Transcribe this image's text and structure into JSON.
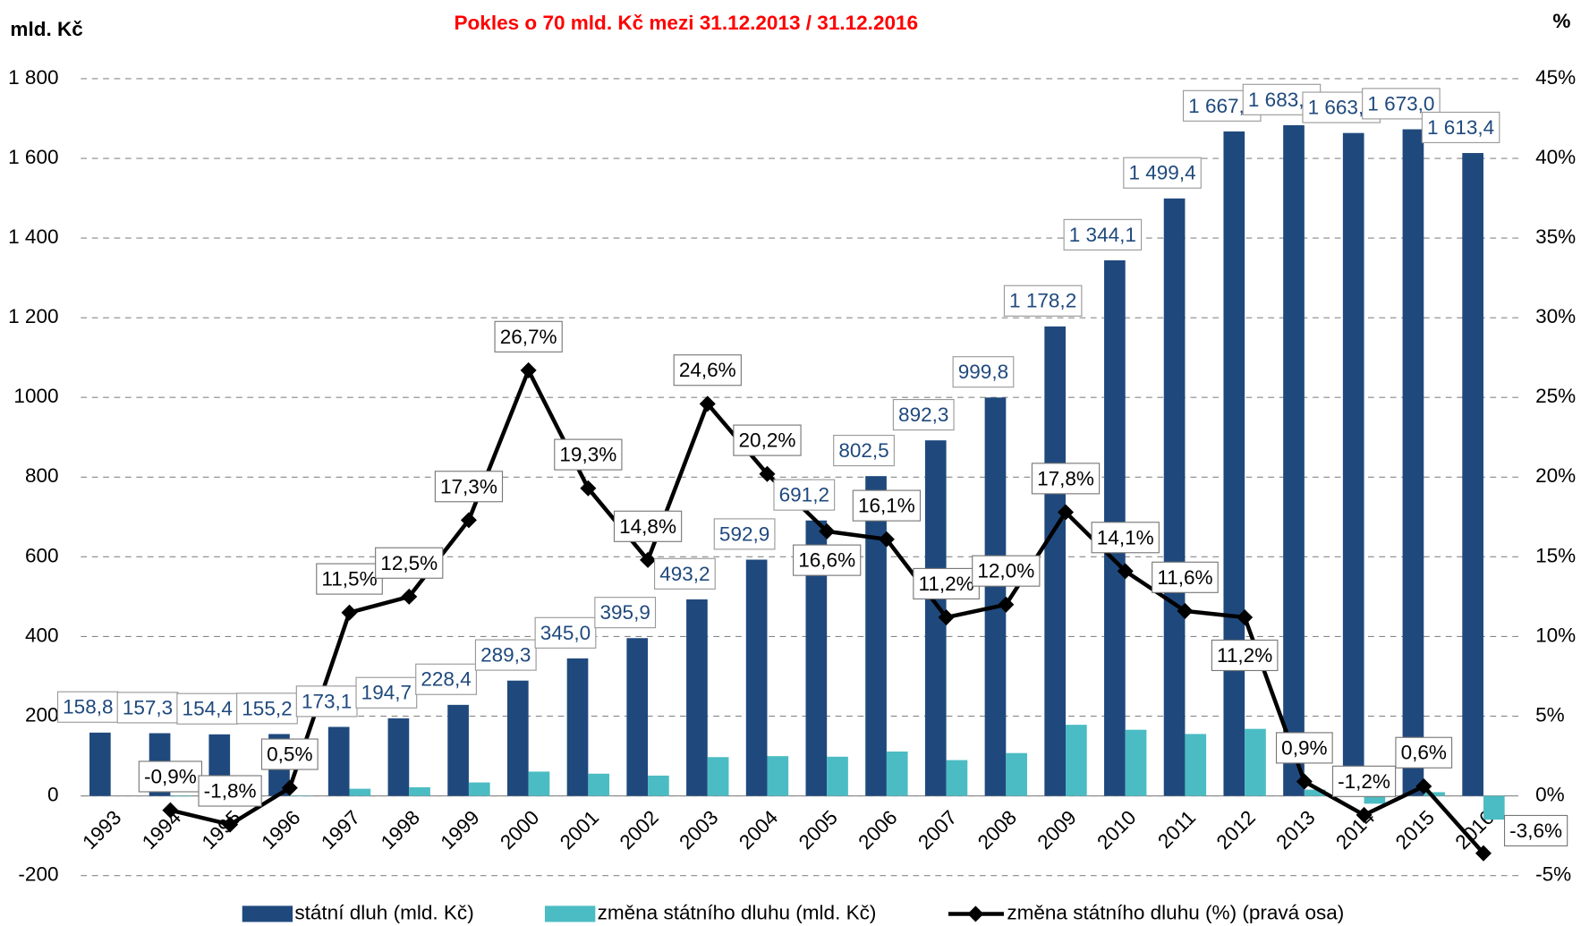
{
  "chart_data": {
    "type": "bar",
    "title": "Pokles o 70 mld. Kč mezi  31.12.2013 / 31.12.2016",
    "y_label": "mld. Kč",
    "y2_label": "%",
    "categories": [
      "1993",
      "1994",
      "1995",
      "1996",
      "1997",
      "1998",
      "1999",
      "2000",
      "2001",
      "2002",
      "2003",
      "2004",
      "2005",
      "2006",
      "2007",
      "2008",
      "2009",
      "2010",
      "2011",
      "2012",
      "2013",
      "2014",
      "2015",
      "2016"
    ],
    "series": [
      {
        "name": "státní dluh (mld. Kč)",
        "type": "bar",
        "color": "#1f497d",
        "values": [
          158.8,
          157.3,
          154.4,
          155.2,
          173.1,
          194.7,
          228.4,
          289.3,
          345.0,
          395.9,
          493.2,
          592.9,
          691.2,
          802.5,
          892.3,
          999.8,
          1178.2,
          1344.1,
          1499.4,
          1667.6,
          1683.3,
          1663.7,
          1673.0,
          1613.4
        ],
        "value_labels": [
          "158,8",
          "157,3",
          "154,4",
          "155,2",
          "173,1",
          "194,7",
          "228,4",
          "289,3",
          "345,0",
          "395,9",
          "493,2",
          "592,9",
          "691,2",
          "802,5",
          "892,3",
          "999,8",
          "1 178,2",
          "1 344,1",
          "1 499,4",
          "1 667,6",
          "1 683,3",
          "1 663,7",
          "1 673,0",
          "1 613,4"
        ]
      },
      {
        "name": "změna státního dluhu (mld. Kč)",
        "type": "bar",
        "color": "#4bbcc3",
        "values": [
          null,
          -1.5,
          -2.9,
          0.8,
          17.9,
          21.6,
          33.7,
          60.9,
          55.7,
          50.9,
          97.3,
          99.7,
          98.3,
          111.3,
          89.8,
          107.5,
          178.4,
          165.9,
          155.3,
          168.2,
          15.7,
          -19.6,
          9.3,
          -59.6
        ]
      },
      {
        "name": "změna státního dluhu (%) (pravá osa)",
        "type": "line",
        "color": "#000000",
        "axis": "y2",
        "values": [
          null,
          -0.9,
          -1.8,
          0.5,
          11.5,
          12.5,
          17.3,
          26.7,
          19.3,
          14.8,
          24.6,
          20.2,
          16.6,
          16.1,
          11.2,
          12.0,
          17.8,
          14.1,
          11.6,
          11.2,
          0.9,
          -1.2,
          0.6,
          -3.6
        ],
        "value_labels": [
          null,
          "-0,9%",
          "-1,8%",
          "0,5%",
          "11,5%",
          "12,5%",
          "17,3%",
          "26,7%",
          "19,3%",
          "14,8%",
          "24,6%",
          "20,2%",
          "16,6%",
          "16,1%",
          "11,2%",
          "12,0%",
          "17,8%",
          "14,1%",
          "11,6%",
          "11,2%",
          "0,9%",
          "-1,2%",
          "0,6%",
          "-3,6%"
        ]
      }
    ],
    "ylim": [
      -200,
      1800
    ],
    "yticks": [
      -200,
      0,
      200,
      400,
      600,
      800,
      1000,
      {
        "value": 1200,
        "label": "1 200"
      },
      {
        "value": 1400,
        "label": "1 400"
      },
      {
        "value": 1600,
        "label": "1 600"
      },
      {
        "value": 1800,
        "label": "1 800"
      }
    ],
    "y2lim": [
      -5,
      45
    ],
    "y2ticks": [
      {
        "value": -5,
        "label": "-5%"
      },
      {
        "value": 0,
        "label": "0%"
      },
      {
        "value": 5,
        "label": "5%"
      },
      {
        "value": 10,
        "label": "10%"
      },
      {
        "value": 15,
        "label": "15%"
      },
      {
        "value": 20,
        "label": "20%"
      },
      {
        "value": 25,
        "label": "25%"
      },
      {
        "value": 30,
        "label": "30%"
      },
      {
        "value": 35,
        "label": "35%"
      },
      {
        "value": 40,
        "label": "40%"
      },
      {
        "value": 45,
        "label": "45%"
      }
    ],
    "grid": true,
    "legend": "bottom"
  }
}
